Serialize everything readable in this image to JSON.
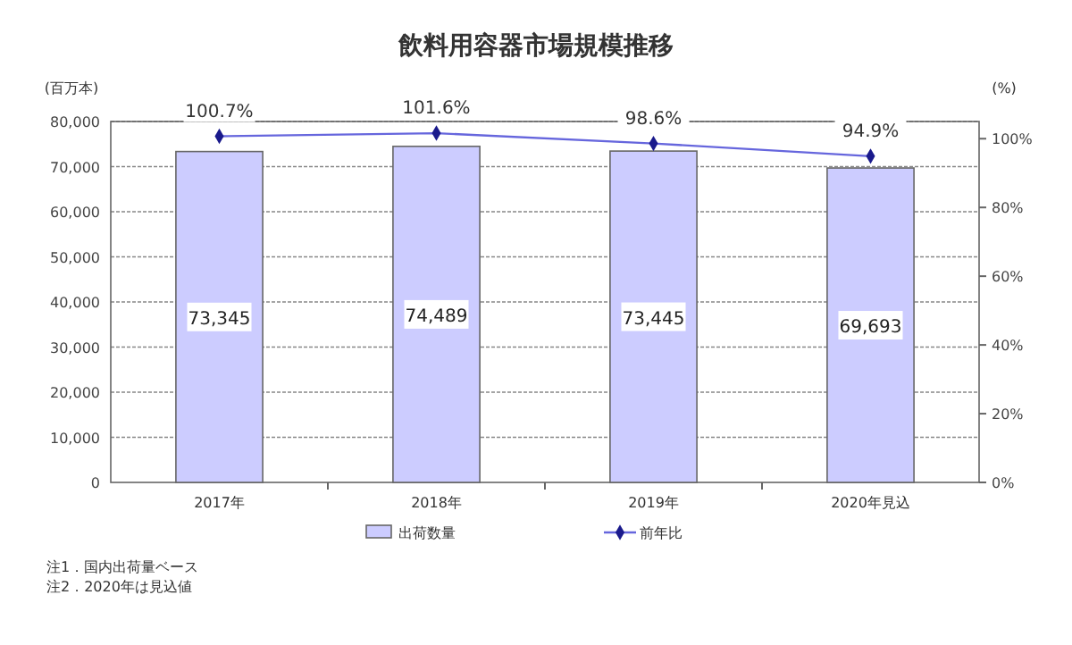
{
  "chart_data": {
    "type": "bar",
    "title": "飲料用容器市場規模推移",
    "ylabel": "(百万本)",
    "y2label": "(%)",
    "categories": [
      "2017年",
      "2018年",
      "2019年",
      "2020年見込"
    ],
    "series": [
      {
        "name": "出荷数量",
        "color": "#ccccff",
        "values": [
          73345,
          74489,
          73445,
          69693
        ],
        "value_labels": [
          "73,345",
          "74,489",
          "73,445",
          "69,693"
        ]
      },
      {
        "name": "前年比",
        "type": "line",
        "axis": "y2",
        "color": "#6666dd",
        "values": [
          100.7,
          101.6,
          98.6,
          94.9
        ],
        "value_labels": [
          "100.7%",
          "101.6%",
          "98.6%",
          "94.9%"
        ],
        "marker": "diamond"
      }
    ],
    "ylim": [
      0,
      80000
    ],
    "yticks": [
      {
        "value": 0,
        "label": "0"
      },
      {
        "value": 10000,
        "label": "10,000"
      },
      {
        "value": 20000,
        "label": "20,000"
      },
      {
        "value": 30000,
        "label": "30,000"
      },
      {
        "value": 40000,
        "label": "40,000"
      },
      {
        "value": 50000,
        "label": "50,000"
      },
      {
        "value": 60000,
        "label": "60,000"
      },
      {
        "value": 70000,
        "label": "70,000"
      },
      {
        "value": 80000,
        "label": "80,000"
      }
    ],
    "y2lim": [
      0,
      105
    ],
    "y2ticks": [
      {
        "value": 0,
        "label": "0%"
      },
      {
        "value": 20,
        "label": "20%"
      },
      {
        "value": 40,
        "label": "40%"
      },
      {
        "value": 60,
        "label": "60%"
      },
      {
        "value": 80,
        "label": "80%"
      },
      {
        "value": 100,
        "label": "100%"
      }
    ],
    "grid": "y",
    "legend": "bottom",
    "annotations": [
      "注1．国内出荷量ベース",
      "注2．2020年は見込値"
    ]
  }
}
